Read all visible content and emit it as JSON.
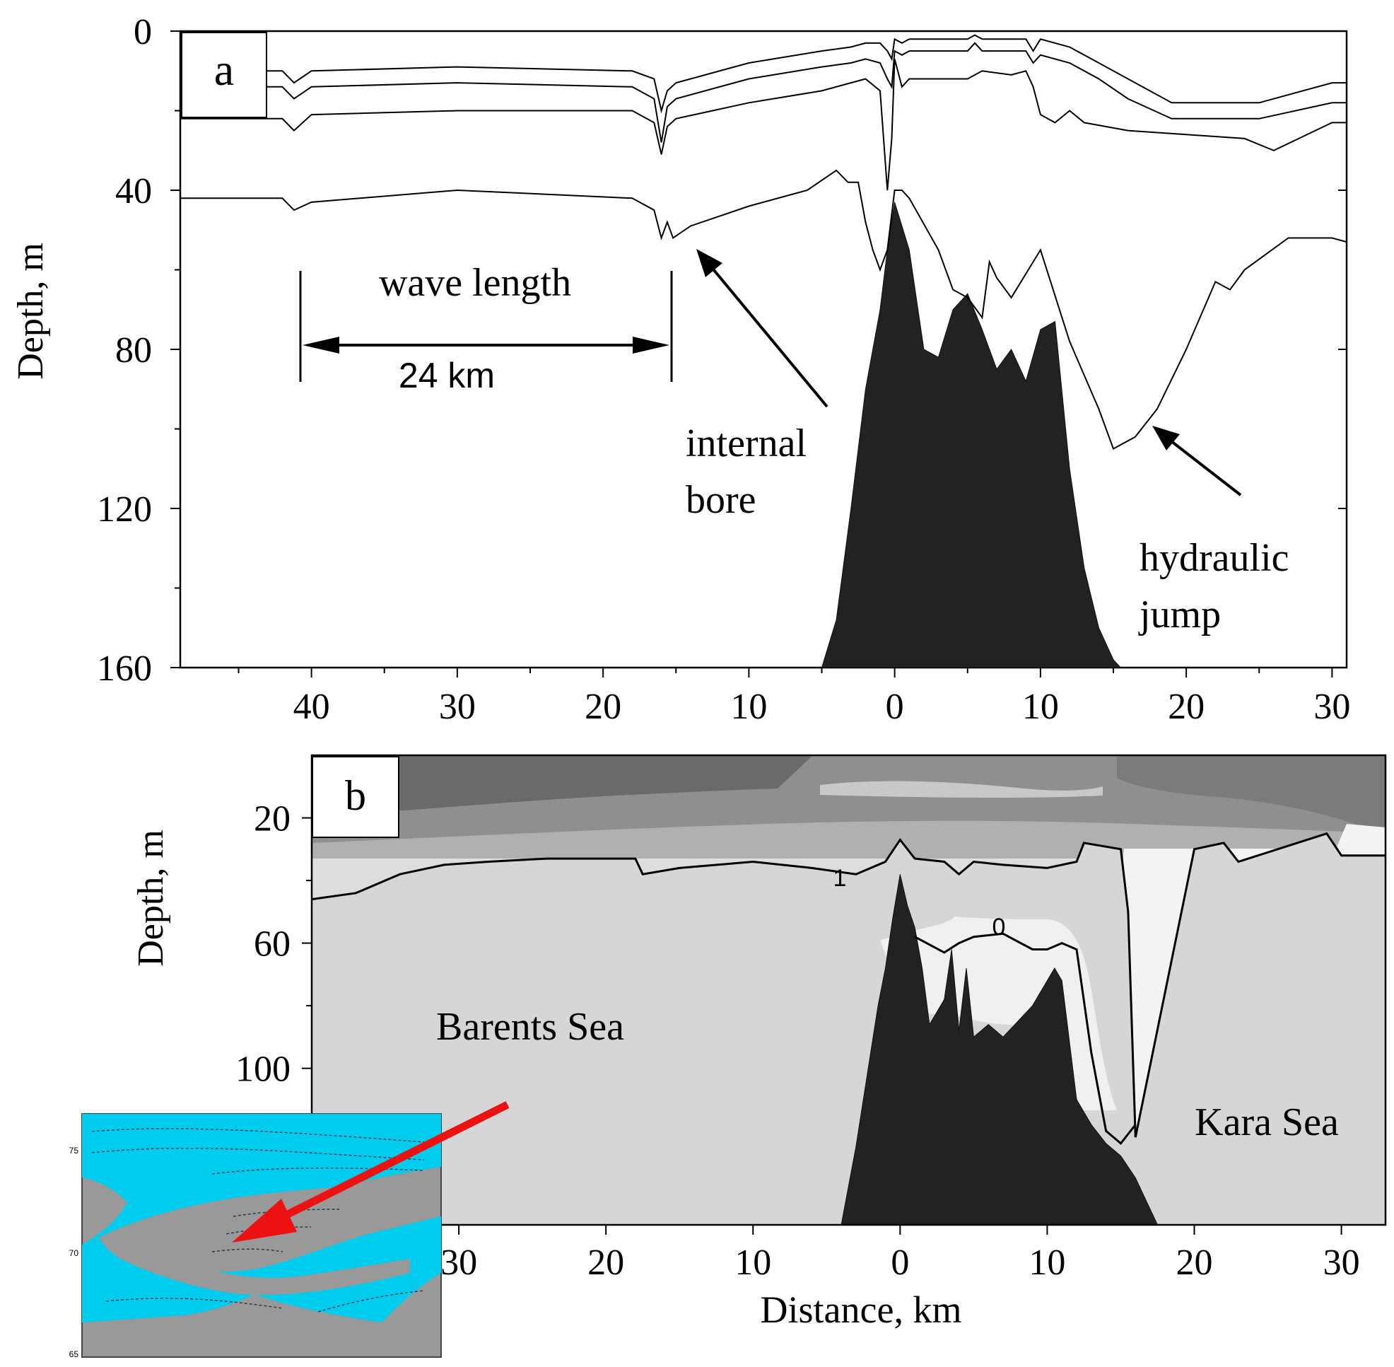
{
  "panel_a": {
    "label": "a",
    "ylabel": "Depth, m",
    "annotations": {
      "wave_length": "wave length",
      "distance": "24 km",
      "internal_bore": [
        "internal",
        "bore"
      ],
      "hydraulic_jump": [
        "hydraulic",
        "jump"
      ]
    }
  },
  "panel_b": {
    "label": "b",
    "ylabel": "Depth, m",
    "xlabel": "Distance, km",
    "regions": {
      "barents": "Barents Sea",
      "kara": "Kara Sea"
    },
    "contour_labels": [
      "1",
      "0"
    ]
  },
  "inset_map": {
    "lat_ticks": [
      "75",
      "70",
      "65"
    ],
    "colors": {
      "sea": "#00ccee",
      "land": "#999999",
      "arrow": "#ee1111"
    }
  },
  "chart_data": [
    {
      "type": "line",
      "panel": "a",
      "ylabel": "Depth, m",
      "y_ticks": [
        0,
        40,
        80,
        120,
        160
      ],
      "ylim": [
        0,
        160
      ],
      "y_inverted": true,
      "x_tick_labels": [
        "40",
        "30",
        "20",
        "10",
        "0",
        "10",
        "20",
        "30"
      ],
      "x_tick_values": [
        -40,
        -30,
        -20,
        -10,
        0,
        10,
        20,
        30
      ],
      "xlim": [
        -49,
        31
      ],
      "series": [
        {
          "x": [
            -49,
            -42,
            -41.2,
            -40,
            -30,
            -18,
            -16.5,
            -16,
            -15.6,
            -15,
            -10,
            -5,
            -3,
            -2,
            -1,
            -0.5,
            -0.2,
            0,
            0.5,
            1,
            3,
            5,
            5.5,
            6,
            8,
            9,
            9.5,
            10,
            12,
            14,
            16,
            19,
            25,
            30,
            31
          ],
          "y": [
            10,
            10,
            13,
            10,
            9,
            10,
            12,
            20,
            15,
            13,
            8,
            5,
            4,
            3,
            3,
            5,
            7,
            2,
            3,
            2,
            2,
            2,
            1,
            2,
            2,
            2,
            5,
            2,
            4,
            8,
            12,
            18,
            18,
            13,
            13
          ]
        },
        {
          "x": [
            -49,
            -42,
            -41.2,
            -40,
            -30,
            -18,
            -16.5,
            -16,
            -15.6,
            -15,
            -10,
            -5,
            -3,
            -2,
            -1,
            -0.5,
            -0.2,
            0,
            0.5,
            1,
            3,
            5,
            5.5,
            6,
            8,
            9,
            9.5,
            10,
            12,
            14,
            16,
            19,
            25,
            30,
            31
          ],
          "y": [
            14,
            14,
            17,
            14,
            13,
            14,
            17,
            28,
            19,
            17,
            12,
            9,
            8,
            7,
            8,
            12,
            14,
            5,
            6,
            5,
            5,
            5,
            3,
            5,
            5,
            5,
            8,
            6,
            8,
            12,
            17,
            22,
            22,
            18,
            18
          ]
        },
        {
          "x": [
            -49,
            -42,
            -41.2,
            -40,
            -30,
            -18,
            -16.5,
            -16,
            -15.6,
            -15,
            -10,
            -5,
            -3,
            -2,
            -1,
            -0.5,
            -0.2,
            0,
            0.5,
            1,
            3,
            5,
            6,
            8,
            9,
            9.5,
            10,
            11,
            12,
            13,
            16,
            20,
            24,
            26,
            30,
            31
          ],
          "y": [
            22,
            22,
            25,
            21,
            20,
            20,
            23,
            31,
            24,
            22,
            18,
            15,
            13,
            12,
            15,
            40,
            27,
            7,
            14,
            12,
            12,
            12,
            10,
            11,
            10,
            14,
            21,
            23,
            20,
            23,
            25,
            26,
            27,
            30,
            23,
            23
          ]
        },
        {
          "x": [
            -49,
            -42,
            -41.2,
            -40,
            -30,
            -18,
            -16.5,
            -16,
            -15.6,
            -15.2,
            -14,
            -10,
            -6,
            -4,
            -3.2,
            -2.5,
            -2,
            -1.5,
            -1,
            -0.5,
            0,
            0.5,
            1,
            3,
            4,
            5,
            6,
            6.5,
            7,
            8,
            10,
            12,
            14,
            15,
            16.5,
            18,
            20,
            22,
            23,
            24,
            27,
            30,
            31
          ],
          "y": [
            42,
            42,
            45,
            43,
            40,
            42,
            45,
            52,
            48,
            52,
            49,
            44,
            40,
            35,
            38,
            38,
            48,
            55,
            60,
            55,
            40,
            40,
            42,
            55,
            65,
            67,
            72,
            58,
            62,
            67,
            55,
            78,
            95,
            105,
            102,
            95,
            80,
            63,
            65,
            60,
            52,
            52,
            53
          ]
        }
      ],
      "seafloor": {
        "x": [
          -5,
          -4,
          -3,
          -2,
          -1,
          -0.5,
          0,
          1,
          2,
          3,
          4,
          5,
          6,
          7,
          8,
          9,
          10,
          11,
          12,
          13,
          14,
          15,
          15.5
        ],
        "y": [
          160,
          148,
          120,
          90,
          70,
          55,
          43,
          55,
          80,
          82,
          70,
          66,
          75,
          85,
          80,
          88,
          75,
          73,
          110,
          135,
          150,
          158,
          160
        ]
      }
    },
    {
      "type": "heatmap",
      "panel": "b",
      "xlabel": "Distance, km",
      "ylabel": "Depth, m",
      "y_ticks": [
        20,
        60,
        100
      ],
      "ylim": [
        0,
        150
      ],
      "y_inverted": true,
      "x_tick_labels": [
        "30",
        "20",
        "10",
        "0",
        "10",
        "20",
        "30"
      ],
      "x_tick_values": [
        -30,
        -20,
        -10,
        0,
        10,
        20,
        30
      ],
      "xlim": [
        -40,
        33
      ],
      "contours": [
        {
          "label": "1",
          "x": [
            -40,
            -37,
            -34,
            -31,
            -28,
            -24,
            -20,
            -18,
            -17.5,
            -15,
            -10,
            -6,
            -3,
            -1,
            0,
            1,
            3,
            4,
            5,
            7,
            10,
            12,
            12.5,
            15,
            15.5,
            16,
            20,
            22,
            23,
            29,
            30,
            33
          ],
          "y": [
            46,
            44,
            38,
            35,
            34,
            33,
            33,
            33,
            38,
            36,
            34,
            36,
            38,
            34,
            27,
            33,
            34,
            38,
            34,
            35,
            36,
            34,
            28,
            30,
            50,
            122,
            30,
            28,
            34,
            25,
            32,
            32
          ]
        },
        {
          "label": "0",
          "x": [
            1,
            3,
            4,
            5,
            7,
            9,
            10,
            11,
            12,
            13,
            14,
            15,
            16
          ],
          "y": [
            58,
            63,
            60,
            58,
            57,
            62,
            62,
            60,
            62,
            95,
            120,
            124,
            118
          ]
        }
      ],
      "seafloor": {
        "x": [
          -4,
          -3,
          -2,
          -1.5,
          -1,
          -0.5,
          0,
          0.5,
          1,
          1.5,
          2,
          3,
          3.5,
          4,
          4.5,
          5,
          6,
          7,
          8,
          9,
          10,
          10.5,
          11,
          12,
          13,
          14,
          15,
          16,
          17,
          17.5
        ],
        "y": [
          150,
          125,
          95,
          80,
          68,
          52,
          38,
          48,
          55,
          68,
          86,
          78,
          62,
          88,
          68,
          90,
          86,
          90,
          85,
          80,
          72,
          68,
          72,
          110,
          118,
          124,
          128,
          135,
          145,
          150
        ]
      },
      "regions": [
        "Barents Sea",
        "Kara Sea"
      ]
    }
  ]
}
